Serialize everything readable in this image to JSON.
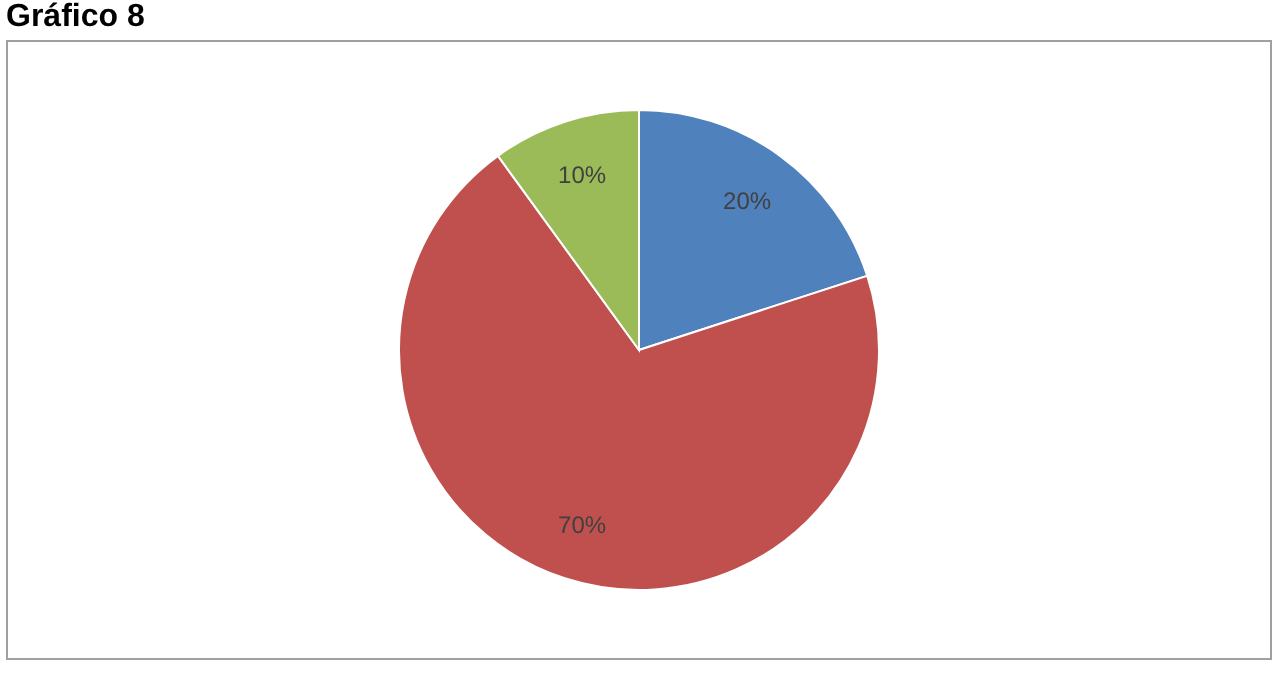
{
  "chart_data": {
    "type": "pie",
    "title": "Gráfico 8",
    "categories": [
      null,
      null,
      null
    ],
    "values": [
      20,
      70,
      10
    ],
    "colors": [
      "#4f81bd",
      "#c0504d",
      "#9bbb59"
    ],
    "value_labels": [
      "20%",
      "70%",
      "10%"
    ],
    "legend": false
  }
}
